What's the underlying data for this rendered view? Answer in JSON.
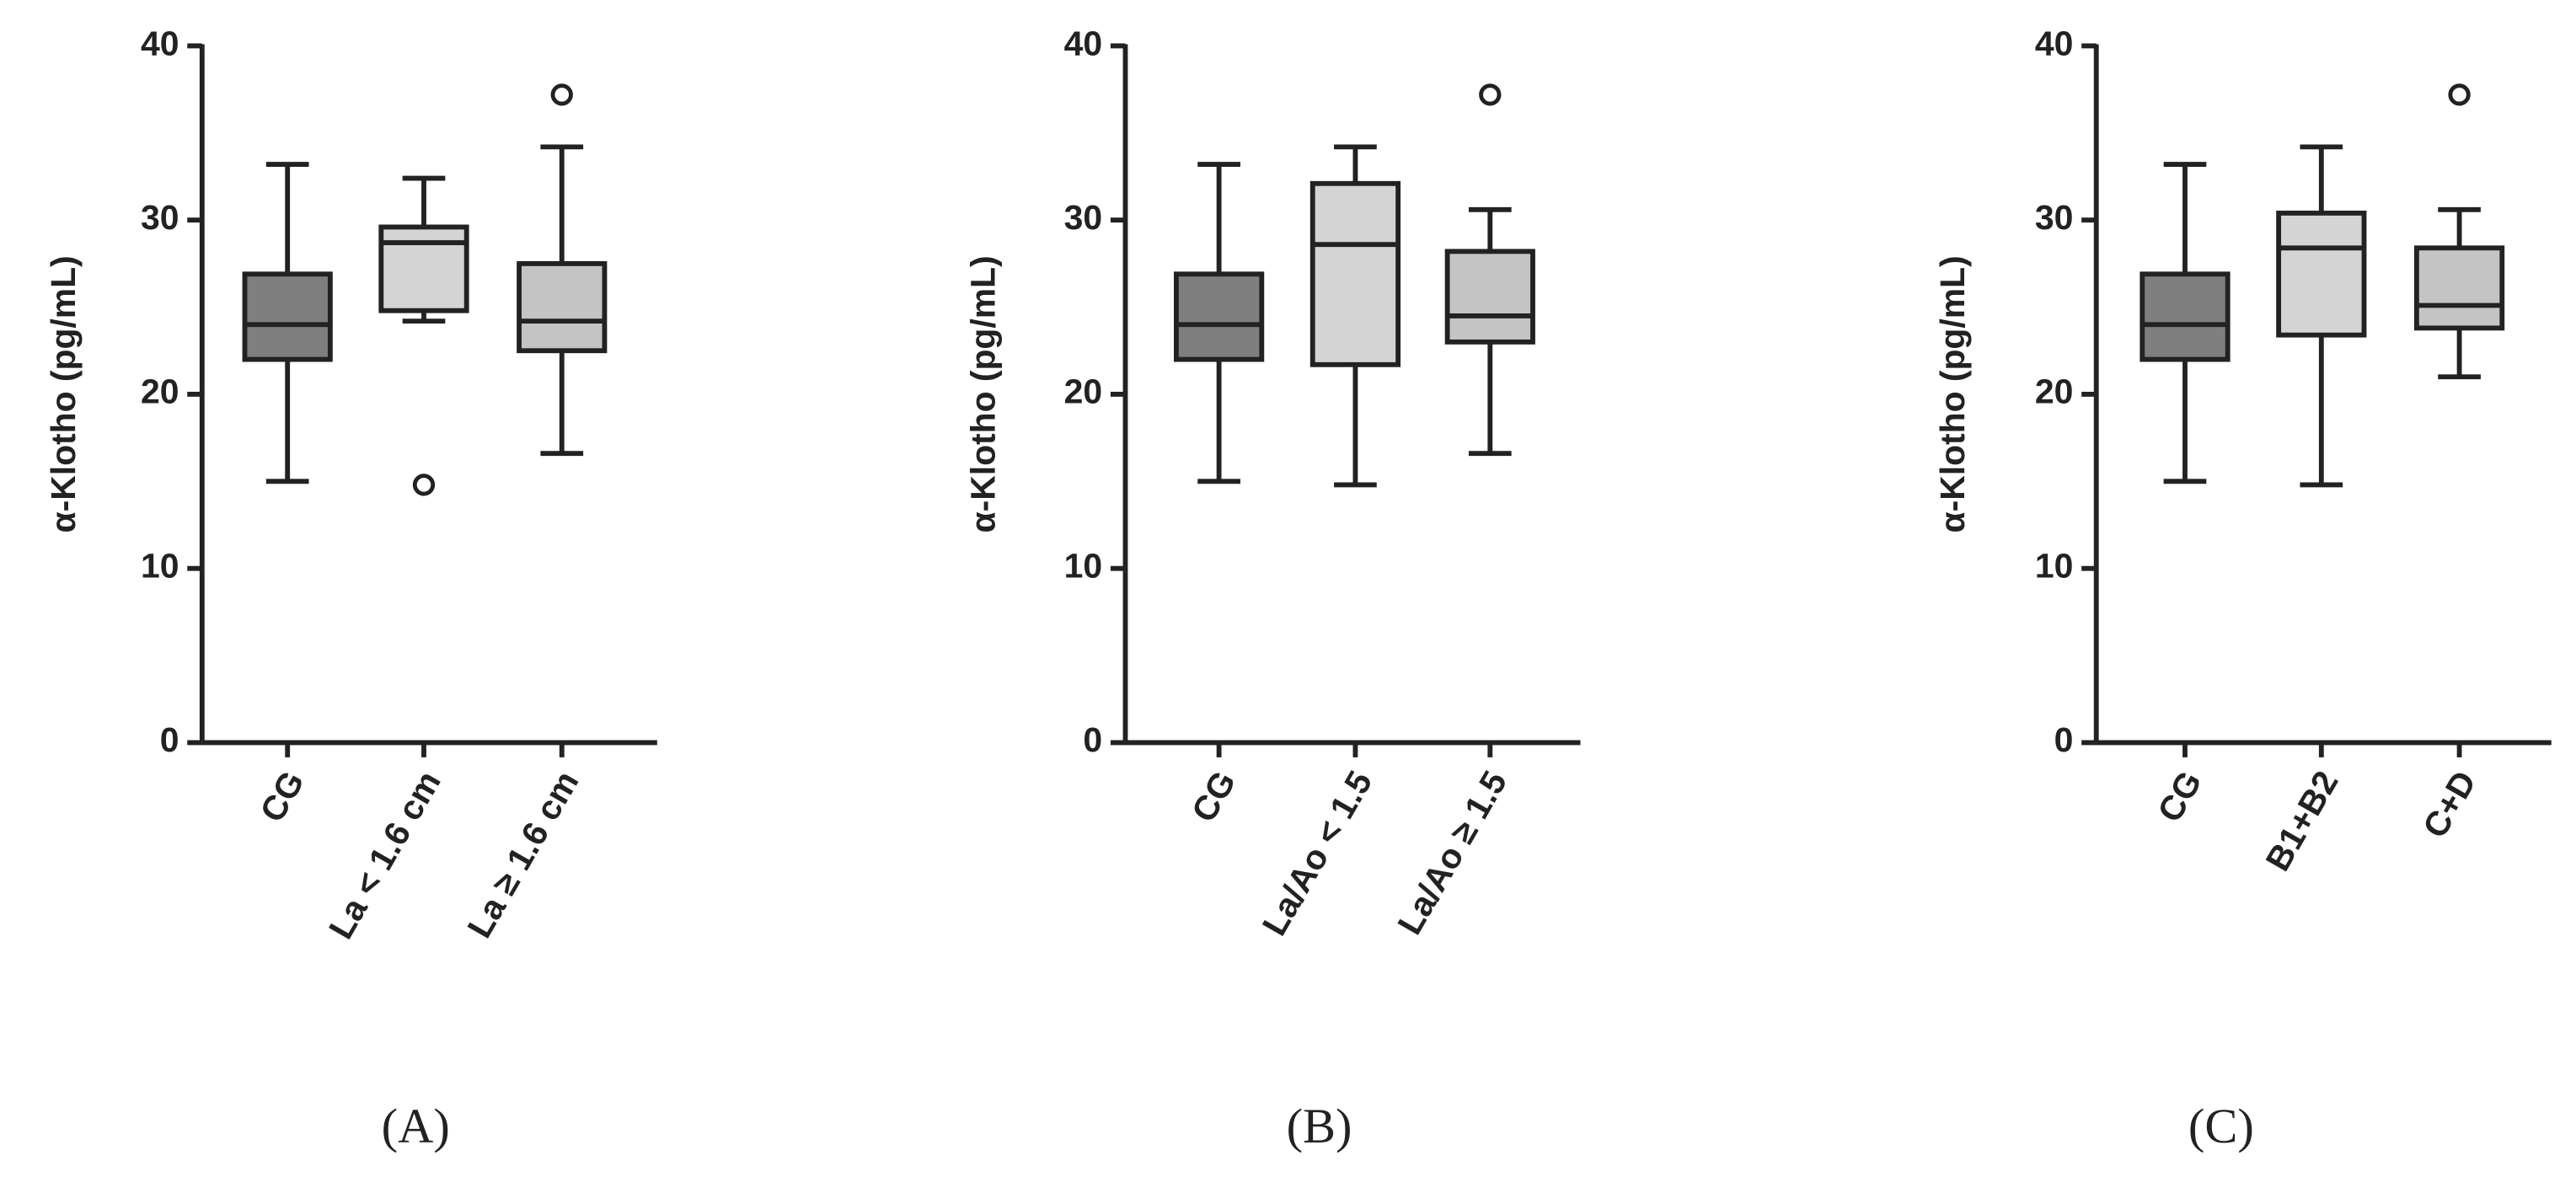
{
  "chart_data": [
    {
      "type": "box",
      "panel_label": "(A)",
      "ylabel": "α-Klotho (pg/mL)",
      "categories": [
        "CG",
        "La < 1.6 cm",
        "La ≥ 1.6 cm"
      ],
      "colors": [
        "#7f7f7f",
        "#d4d4d4",
        "#c4c4c4"
      ],
      "boxes": [
        {
          "min": 15,
          "q1": 22,
          "median": 24,
          "q3": 26.9,
          "max": 33.2
        },
        {
          "min": 24.2,
          "q1": 24.8,
          "median": 28.7,
          "q3": 29.6,
          "max": 32.4,
          "outliers": [
            14.8
          ]
        },
        {
          "min": 16.6,
          "q1": 22.5,
          "median": 24.2,
          "q3": 27.5,
          "max": 34.2,
          "outliers": [
            37.2
          ]
        }
      ],
      "ylim": [
        0,
        40
      ],
      "yticks": [
        0,
        10,
        20,
        30,
        40
      ]
    },
    {
      "type": "box",
      "panel_label": "(B)",
      "ylabel": "α-Klotho (pg/mL)",
      "categories": [
        "CG",
        "La/Ao < 1.5",
        "La/Ao ≥ 1.5"
      ],
      "colors": [
        "#7f7f7f",
        "#d4d4d4",
        "#c4c4c4"
      ],
      "boxes": [
        {
          "min": 15,
          "q1": 22,
          "median": 24,
          "q3": 26.9,
          "max": 33.2
        },
        {
          "min": 14.8,
          "q1": 21.7,
          "median": 28.6,
          "q3": 32.1,
          "max": 34.2
        },
        {
          "min": 16.6,
          "q1": 23,
          "median": 24.5,
          "q3": 28.2,
          "max": 30.6,
          "outliers": [
            37.2
          ]
        }
      ],
      "ylim": [
        0,
        40
      ],
      "yticks": [
        0,
        10,
        20,
        30,
        40
      ]
    },
    {
      "type": "box",
      "panel_label": "(C)",
      "ylabel": "α-Klotho (pg/mL)",
      "categories": [
        "CG",
        "B1+B2",
        "C+D"
      ],
      "colors": [
        "#7f7f7f",
        "#d4d4d4",
        "#c4c4c4"
      ],
      "boxes": [
        {
          "min": 15,
          "q1": 22,
          "median": 24,
          "q3": 26.9,
          "max": 33.2
        },
        {
          "min": 14.8,
          "q1": 23.4,
          "median": 28.4,
          "q3": 30.4,
          "max": 34.2
        },
        {
          "min": 21,
          "q1": 23.8,
          "median": 25.1,
          "q3": 28.4,
          "max": 30.6,
          "outliers": [
            37.2
          ]
        }
      ],
      "ylim": [
        0,
        40
      ],
      "yticks": [
        0,
        10,
        20,
        30,
        40
      ]
    }
  ]
}
